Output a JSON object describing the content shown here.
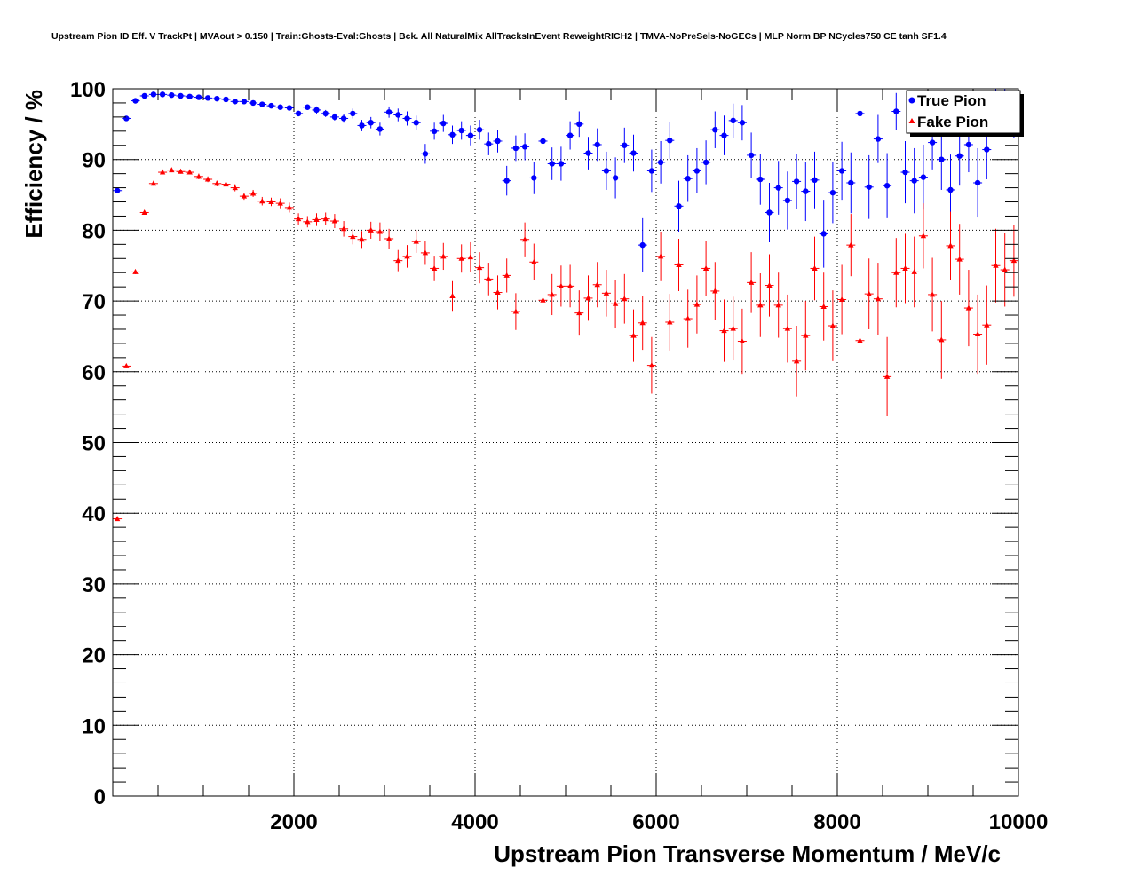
{
  "chart_data": {
    "type": "scatter",
    "title": "Upstream Pion ID Eff. V TrackPt | MVAout > 0.150 | Train:Ghosts-Eval:Ghosts | Bck. All NaturalMix AllTracksInEvent ReweightRICH2 | TMVA-NoPreSels-NoGECs | MLP Norm BP NCycles750 CE tanh SF1.4",
    "xlabel": "Upstream Pion Transverse Momentum / MeV/c",
    "ylabel": "Efficiency / %",
    "xlim": [
      0,
      10000
    ],
    "ylim": [
      0,
      100
    ],
    "x_ticks": [
      2000,
      4000,
      6000,
      8000,
      10000
    ],
    "y_ticks": [
      0,
      10,
      20,
      30,
      40,
      50,
      60,
      70,
      80,
      90,
      100
    ],
    "grid": true,
    "legend_position": "top-right",
    "series": [
      {
        "name": "True Pion",
        "color": "#0000ff",
        "marker": "circle",
        "points": [
          [
            50,
            85.6,
            0.4
          ],
          [
            150,
            95.8,
            0.3
          ],
          [
            250,
            98.3,
            0.2
          ],
          [
            350,
            99.0,
            0.2
          ],
          [
            450,
            99.2,
            0.2
          ],
          [
            550,
            99.2,
            0.2
          ],
          [
            650,
            99.1,
            0.2
          ],
          [
            750,
            99.0,
            0.2
          ],
          [
            850,
            98.9,
            0.2
          ],
          [
            950,
            98.8,
            0.2
          ],
          [
            1050,
            98.7,
            0.2
          ],
          [
            1150,
            98.6,
            0.2
          ],
          [
            1250,
            98.5,
            0.2
          ],
          [
            1350,
            98.2,
            0.2
          ],
          [
            1450,
            98.2,
            0.3
          ],
          [
            1550,
            98.0,
            0.3
          ],
          [
            1650,
            97.8,
            0.3
          ],
          [
            1750,
            97.6,
            0.3
          ],
          [
            1850,
            97.4,
            0.3
          ],
          [
            1950,
            97.3,
            0.3
          ],
          [
            2050,
            96.5,
            0.4
          ],
          [
            2150,
            97.4,
            0.4
          ],
          [
            2250,
            97.0,
            0.5
          ],
          [
            2350,
            96.5,
            0.5
          ],
          [
            2450,
            96.0,
            0.5
          ],
          [
            2550,
            95.8,
            0.6
          ],
          [
            2650,
            96.5,
            0.7
          ],
          [
            2750,
            94.8,
            0.8
          ],
          [
            2850,
            95.2,
            0.8
          ],
          [
            2950,
            94.3,
            0.9
          ],
          [
            3050,
            96.7,
            0.8
          ],
          [
            3150,
            96.3,
            0.9
          ],
          [
            3250,
            95.8,
            1.0
          ],
          [
            3350,
            95.2,
            1.0
          ],
          [
            3450,
            90.8,
            1.4
          ],
          [
            3550,
            94.0,
            1.2
          ],
          [
            3650,
            95.1,
            1.2
          ],
          [
            3750,
            93.5,
            1.3
          ],
          [
            3850,
            94.1,
            1.3
          ],
          [
            3950,
            93.4,
            1.4
          ],
          [
            4050,
            94.2,
            1.4
          ],
          [
            4150,
            92.2,
            1.6
          ],
          [
            4250,
            92.6,
            1.6
          ],
          [
            4350,
            87.0,
            2.1
          ],
          [
            4450,
            91.6,
            1.8
          ],
          [
            4550,
            91.8,
            1.9
          ],
          [
            4650,
            87.4,
            2.3
          ],
          [
            4750,
            92.6,
            2.0
          ],
          [
            4850,
            89.4,
            2.3
          ],
          [
            4950,
            89.4,
            2.4
          ],
          [
            5050,
            93.4,
            2.0
          ],
          [
            5150,
            95.0,
            1.8
          ],
          [
            5250,
            90.9,
            2.3
          ],
          [
            5350,
            92.1,
            2.3
          ],
          [
            5450,
            88.4,
            2.7
          ],
          [
            5550,
            87.4,
            2.9
          ],
          [
            5650,
            92.0,
            2.5
          ],
          [
            5750,
            90.9,
            2.6
          ],
          [
            5850,
            77.9,
            3.8
          ],
          [
            5950,
            88.4,
            3.0
          ],
          [
            6050,
            89.6,
            3.0
          ],
          [
            6150,
            92.7,
            2.6
          ],
          [
            6250,
            83.4,
            3.6
          ],
          [
            6350,
            87.3,
            3.3
          ],
          [
            6450,
            88.4,
            3.2
          ],
          [
            6550,
            89.6,
            3.1
          ],
          [
            6650,
            94.2,
            2.6
          ],
          [
            6750,
            93.4,
            2.8
          ],
          [
            6850,
            95.5,
            2.4
          ],
          [
            6950,
            95.2,
            2.5
          ],
          [
            7050,
            90.6,
            3.2
          ],
          [
            7150,
            87.2,
            3.6
          ],
          [
            7250,
            82.5,
            4.2
          ],
          [
            7350,
            86.0,
            3.8
          ],
          [
            7450,
            84.2,
            4.1
          ],
          [
            7550,
            86.9,
            3.9
          ],
          [
            7650,
            85.5,
            4.2
          ],
          [
            7750,
            87.1,
            4.0
          ],
          [
            7850,
            79.5,
            4.8
          ],
          [
            7950,
            85.3,
            4.3
          ],
          [
            8050,
            88.4,
            4.1
          ],
          [
            8150,
            86.7,
            4.3
          ],
          [
            8250,
            96.5,
            2.5
          ],
          [
            8350,
            86.1,
            4.5
          ],
          [
            8450,
            92.9,
            3.4
          ],
          [
            8550,
            86.3,
            4.6
          ],
          [
            8650,
            96.8,
            2.6
          ],
          [
            8750,
            88.2,
            4.4
          ],
          [
            8850,
            87.0,
            4.6
          ],
          [
            8950,
            87.5,
            4.6
          ],
          [
            9050,
            92.4,
            3.8
          ],
          [
            9150,
            90.0,
            4.3
          ],
          [
            9250,
            85.7,
            5.0
          ],
          [
            9350,
            90.5,
            4.2
          ],
          [
            9450,
            92.1,
            3.9
          ],
          [
            9550,
            86.7,
            4.9
          ],
          [
            9650,
            91.4,
            4.2
          ],
          [
            9750,
            97.3,
            2.8
          ],
          [
            9850,
            97.8,
            2.5
          ],
          [
            9950,
            96.3,
            3.3
          ]
        ]
      },
      {
        "name": "Fake Pion",
        "color": "#ff0000",
        "marker": "triangle",
        "points": [
          [
            50,
            39.2,
            0.3
          ],
          [
            150,
            60.8,
            0.3
          ],
          [
            250,
            74.1,
            0.3
          ],
          [
            350,
            82.5,
            0.3
          ],
          [
            450,
            86.6,
            0.3
          ],
          [
            550,
            88.2,
            0.3
          ],
          [
            650,
            88.5,
            0.3
          ],
          [
            750,
            88.3,
            0.3
          ],
          [
            850,
            88.2,
            0.3
          ],
          [
            950,
            87.6,
            0.4
          ],
          [
            1050,
            87.2,
            0.4
          ],
          [
            1150,
            86.6,
            0.4
          ],
          [
            1250,
            86.5,
            0.4
          ],
          [
            1350,
            86.0,
            0.5
          ],
          [
            1450,
            84.8,
            0.5
          ],
          [
            1550,
            85.2,
            0.5
          ],
          [
            1650,
            84.1,
            0.6
          ],
          [
            1750,
            84.0,
            0.6
          ],
          [
            1850,
            83.8,
            0.7
          ],
          [
            1950,
            83.2,
            0.7
          ],
          [
            2050,
            81.6,
            0.8
          ],
          [
            2150,
            81.2,
            0.8
          ],
          [
            2250,
            81.5,
            0.9
          ],
          [
            2350,
            81.6,
            0.9
          ],
          [
            2450,
            81.3,
            1.0
          ],
          [
            2550,
            80.2,
            1.1
          ],
          [
            2650,
            79.1,
            1.1
          ],
          [
            2750,
            78.7,
            1.2
          ],
          [
            2850,
            80.0,
            1.2
          ],
          [
            2950,
            79.8,
            1.3
          ],
          [
            3050,
            78.8,
            1.4
          ],
          [
            3150,
            75.7,
            1.5
          ],
          [
            3250,
            76.3,
            1.6
          ],
          [
            3350,
            78.4,
            1.6
          ],
          [
            3450,
            76.8,
            1.7
          ],
          [
            3550,
            74.6,
            1.8
          ],
          [
            3650,
            76.3,
            1.9
          ],
          [
            3750,
            70.7,
            2.1
          ],
          [
            3850,
            76.0,
            2.0
          ],
          [
            3950,
            76.2,
            2.1
          ],
          [
            4050,
            74.7,
            2.2
          ],
          [
            4150,
            73.1,
            2.3
          ],
          [
            4250,
            71.2,
            2.4
          ],
          [
            4350,
            73.6,
            2.4
          ],
          [
            4450,
            68.5,
            2.6
          ],
          [
            4550,
            78.7,
            2.4
          ],
          [
            4650,
            75.5,
            2.6
          ],
          [
            4750,
            70.1,
            2.8
          ],
          [
            4850,
            70.9,
            2.9
          ],
          [
            4950,
            72.1,
            2.9
          ],
          [
            5050,
            72.1,
            3.0
          ],
          [
            5150,
            68.3,
            3.2
          ],
          [
            5250,
            70.4,
            3.2
          ],
          [
            5350,
            72.3,
            3.2
          ],
          [
            5450,
            71.1,
            3.3
          ],
          [
            5550,
            69.6,
            3.4
          ],
          [
            5650,
            70.3,
            3.5
          ],
          [
            5750,
            65.1,
            3.7
          ],
          [
            5850,
            66.9,
            3.8
          ],
          [
            5950,
            60.9,
            4.0
          ],
          [
            6050,
            76.3,
            3.5
          ],
          [
            6150,
            67.0,
            4.0
          ],
          [
            6250,
            75.1,
            3.7
          ],
          [
            6350,
            67.5,
            4.1
          ],
          [
            6450,
            69.5,
            4.1
          ],
          [
            6550,
            74.6,
            3.9
          ],
          [
            6650,
            71.4,
            4.1
          ],
          [
            6750,
            65.8,
            4.4
          ],
          [
            6850,
            66.1,
            4.5
          ],
          [
            6950,
            64.3,
            4.6
          ],
          [
            7050,
            72.6,
            4.3
          ],
          [
            7150,
            69.4,
            4.5
          ],
          [
            7250,
            72.2,
            4.4
          ],
          [
            7350,
            69.4,
            4.6
          ],
          [
            7450,
            66.1,
            4.8
          ],
          [
            7550,
            61.5,
            5.0
          ],
          [
            7650,
            65.1,
            4.9
          ],
          [
            7750,
            74.6,
            4.5
          ],
          [
            7850,
            69.2,
            4.8
          ],
          [
            7950,
            66.5,
            5.0
          ],
          [
            8050,
            70.2,
            4.9
          ],
          [
            8150,
            77.9,
            4.4
          ],
          [
            8250,
            64.4,
            5.2
          ],
          [
            8350,
            71.0,
            5.0
          ],
          [
            8450,
            70.3,
            5.1
          ],
          [
            8550,
            59.3,
            5.6
          ],
          [
            8650,
            74.0,
            4.9
          ],
          [
            8750,
            74.6,
            4.9
          ],
          [
            8850,
            74.1,
            5.0
          ],
          [
            8950,
            79.2,
            4.6
          ],
          [
            9050,
            70.9,
            5.2
          ],
          [
            9150,
            64.5,
            5.5
          ],
          [
            9250,
            77.8,
            4.8
          ],
          [
            9350,
            75.9,
            5.0
          ],
          [
            9450,
            69.0,
            5.4
          ],
          [
            9550,
            65.3,
            5.6
          ],
          [
            9650,
            66.6,
            5.6
          ],
          [
            9750,
            75.0,
            5.2
          ],
          [
            9850,
            74.4,
            5.2
          ],
          [
            9950,
            75.7,
            5.1
          ]
        ]
      }
    ]
  }
}
